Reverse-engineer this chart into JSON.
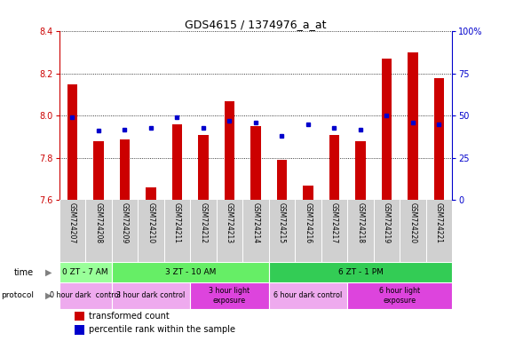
{
  "title": "GDS4615 / 1374976_a_at",
  "samples": [
    "GSM724207",
    "GSM724208",
    "GSM724209",
    "GSM724210",
    "GSM724211",
    "GSM724212",
    "GSM724213",
    "GSM724214",
    "GSM724215",
    "GSM724216",
    "GSM724217",
    "GSM724218",
    "GSM724219",
    "GSM724220",
    "GSM724221"
  ],
  "red_values": [
    8.15,
    7.88,
    7.89,
    7.66,
    7.96,
    7.91,
    8.07,
    7.95,
    7.79,
    7.67,
    7.91,
    7.88,
    8.27,
    8.3,
    8.18
  ],
  "blue_values": [
    49,
    41,
    42,
    43,
    49,
    43,
    47,
    46,
    38,
    45,
    43,
    42,
    50,
    46,
    45
  ],
  "ylim_left": [
    7.6,
    8.4
  ],
  "ylim_right": [
    0,
    100
  ],
  "yticks_left": [
    7.6,
    7.8,
    8.0,
    8.2,
    8.4
  ],
  "yticks_right": [
    0,
    25,
    50,
    75,
    100
  ],
  "left_axis_color": "#cc0000",
  "right_axis_color": "#0000cc",
  "bar_color": "#cc0000",
  "dot_color": "#0000cc",
  "time_groups": [
    {
      "label": "0 ZT - 7 AM",
      "start": 0,
      "end": 1
    },
    {
      "label": "3 ZT - 10 AM",
      "start": 2,
      "end": 7
    },
    {
      "label": "6 ZT - 1 PM",
      "start": 8,
      "end": 14
    }
  ],
  "protocol_groups": [
    {
      "label": "0 hour dark  control",
      "start": 0,
      "end": 1,
      "light": false
    },
    {
      "label": "3 hour dark control",
      "start": 2,
      "end": 4,
      "light": false
    },
    {
      "label": "3 hour light\nexposure",
      "start": 5,
      "end": 7,
      "light": true
    },
    {
      "label": "6 hour dark control",
      "start": 8,
      "end": 10,
      "light": false
    },
    {
      "label": "6 hour light\nexposure",
      "start": 11,
      "end": 14,
      "light": true
    }
  ],
  "time_color_light": "#99ff99",
  "time_color_medium": "#66ee66",
  "time_color_dark": "#33cc55",
  "proto_color_dark": "#eeaaee",
  "proto_color_light": "#dd44dd",
  "sample_bg": "#d0d0d0",
  "legend_red": "transformed count",
  "legend_blue": "percentile rank within the sample"
}
